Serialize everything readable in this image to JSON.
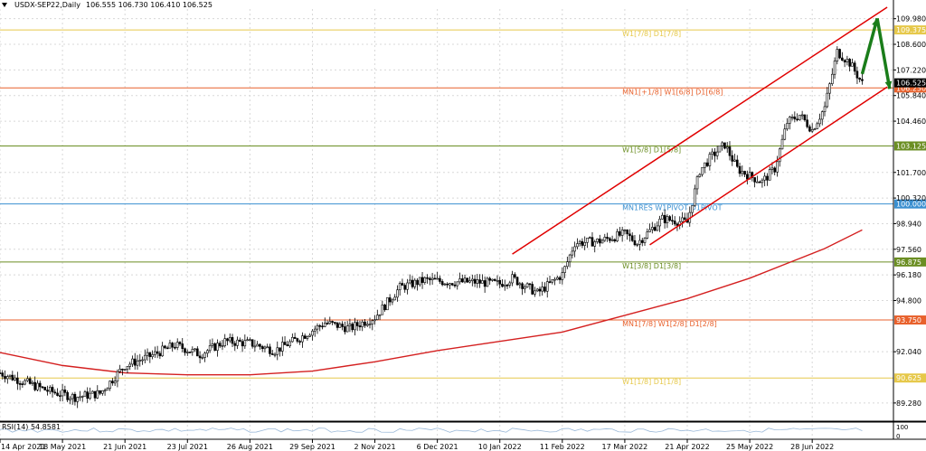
{
  "header": {
    "symbol": "USDX-SEP22,Daily",
    "ohlc": "106.555 106.730 106.410 106.525"
  },
  "rsi": {
    "label": "RSI(14) 54.8581"
  },
  "colors": {
    "candle": "#000000",
    "channel": "#e00000",
    "ma": "#d42020",
    "arrow": "#1a7d1a",
    "level_yellow": "#e6c84a",
    "level_green": "#6b8e23",
    "level_blue": "#3a8fd0",
    "level_orange": "#e8612c",
    "price_box": "#000000",
    "rsi_line": "#9ab8d8"
  },
  "chart_data": {
    "type": "candlestick",
    "instrument": "USDX-SEP22",
    "timeframe": "Daily",
    "last": {
      "open": 106.555,
      "high": 106.73,
      "low": 106.41,
      "close": 106.525
    },
    "ylim": [
      88.3,
      110.5
    ],
    "y_ticks": [
      "109.980",
      "108.600",
      "107.220",
      "105.840",
      "104.460",
      "101.700",
      "100.320",
      "98.940",
      "97.560",
      "96.180",
      "94.800",
      "92.040",
      "89.280"
    ],
    "x_ticks": [
      "14 Apr 2021",
      "18 May 2021",
      "21 Jun 2021",
      "23 Jul 2021",
      "26 Aug 2021",
      "29 Sep 2021",
      "2 Nov 2021",
      "6 Dec 2021",
      "10 Jan 2022",
      "11 Feb 2022",
      "17 Mar 2022",
      "21 Apr 2022",
      "25 May 2022",
      "28 Jun 2022"
    ],
    "x_weeks": [
      0,
      5,
      10,
      15,
      20,
      25,
      30,
      35,
      40,
      45,
      50,
      55,
      60,
      65
    ],
    "last_week": 69,
    "price_path": [
      [
        0,
        90.9
      ],
      [
        2,
        90.4
      ],
      [
        4,
        89.9
      ],
      [
        6,
        89.6
      ],
      [
        8,
        89.8
      ],
      [
        10,
        91.3
      ],
      [
        12,
        91.8
      ],
      [
        14,
        92.4
      ],
      [
        16,
        91.9
      ],
      [
        18,
        92.6
      ],
      [
        20,
        92.5
      ],
      [
        22,
        92.1
      ],
      [
        24,
        92.8
      ],
      [
        26,
        93.6
      ],
      [
        28,
        93.3
      ],
      [
        30,
        93.9
      ],
      [
        32,
        95.5
      ],
      [
        34,
        95.9
      ],
      [
        36,
        95.8
      ],
      [
        38,
        95.8
      ],
      [
        40,
        95.7
      ],
      [
        41,
        96.0
      ],
      [
        43,
        95.2
      ],
      [
        45,
        96.2
      ],
      [
        46,
        97.9
      ],
      [
        48,
        98.0
      ],
      [
        50,
        98.4
      ],
      [
        51,
        97.9
      ],
      [
        53,
        99.2
      ],
      [
        55,
        99.0
      ],
      [
        56,
        101.8
      ],
      [
        57,
        102.6
      ],
      [
        58,
        103.2
      ],
      [
        59,
        101.9
      ],
      [
        60,
        101.5
      ],
      [
        61,
        101.2
      ],
      [
        62,
        101.9
      ],
      [
        63,
        104.4
      ],
      [
        64,
        104.8
      ],
      [
        65,
        104.0
      ],
      [
        66,
        105.2
      ],
      [
        67,
        108.2
      ],
      [
        68,
        107.6
      ],
      [
        69,
        106.5
      ]
    ],
    "moving_average": [
      [
        0,
        92.0
      ],
      [
        5,
        91.3
      ],
      [
        10,
        90.9
      ],
      [
        15,
        90.8
      ],
      [
        20,
        90.8
      ],
      [
        25,
        91.0
      ],
      [
        30,
        91.5
      ],
      [
        35,
        92.1
      ],
      [
        40,
        92.6
      ],
      [
        45,
        93.1
      ],
      [
        50,
        94.0
      ],
      [
        55,
        94.9
      ],
      [
        60,
        96.0
      ],
      [
        63,
        96.8
      ],
      [
        66,
        97.6
      ],
      [
        69,
        98.6
      ]
    ],
    "channel": [
      {
        "from": [
          41,
          97.3
        ],
        "to": [
          71,
          110.6
        ]
      },
      {
        "from": [
          52,
          97.8
        ],
        "to": [
          71,
          106.3
        ]
      }
    ],
    "arrows": [
      {
        "from": [
          69,
          107.0
        ],
        "to": [
          70.2,
          110.0
        ]
      },
      {
        "from": [
          70.2,
          110.0
        ],
        "to": [
          71.2,
          106.2
        ]
      }
    ],
    "levels": [
      {
        "price": 109.375,
        "price_label": "109.375",
        "label": "W1[7/8] D1[7/8]",
        "color": "#e6c84a"
      },
      {
        "price": 106.25,
        "price_label": "106.250",
        "label": "MN1[+1/8] W1[6/8] D1[6/8]",
        "color": "#e8612c"
      },
      {
        "price": 103.125,
        "price_label": "103.125",
        "label": "W1[5/8] D1[5/8]",
        "color": "#6b8e23"
      },
      {
        "price": 100.0,
        "price_label": "100.000",
        "label": "MN1RES W1PIVOT D1PIVOT",
        "color": "#3a8fd0"
      },
      {
        "price": 96.875,
        "price_label": "96.875",
        "label": "W1[3/8] D1[3/8]",
        "color": "#6b8e23"
      },
      {
        "price": 93.75,
        "price_label": "93.750",
        "label": "MN1[7/8] W1[2/8] D1[2/8]",
        "color": "#e8612c"
      },
      {
        "price": 90.625,
        "price_label": "90.625",
        "label": "W1[1/8] D1[1/8]",
        "color": "#e6c84a"
      }
    ],
    "current_price_label": "106.525",
    "rsi_axis": [
      "100",
      "0"
    ]
  }
}
